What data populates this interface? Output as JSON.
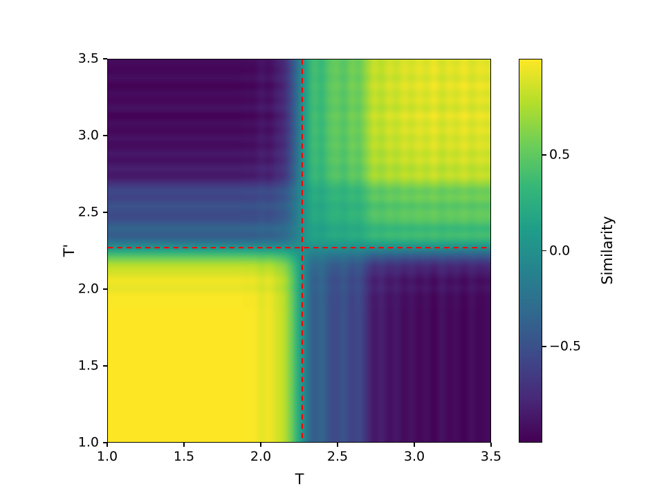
{
  "chart_data": {
    "type": "heatmap",
    "title": "",
    "xlabel": "T",
    "ylabel": "T'",
    "x_range": [
      1.0,
      3.5
    ],
    "y_range": [
      1.0,
      3.5
    ],
    "x_ticks": [
      "1.0",
      "1.5",
      "2.0",
      "2.5",
      "3.0",
      "3.5"
    ],
    "x_tick_values": [
      1.0,
      1.5,
      2.0,
      2.5,
      3.0,
      3.5
    ],
    "y_ticks": [
      "1.0",
      "1.5",
      "2.0",
      "2.5",
      "3.0",
      "3.5"
    ],
    "y_tick_values": [
      1.0,
      1.5,
      2.0,
      2.5,
      3.0,
      3.5
    ],
    "grid": false,
    "colormap": "viridis",
    "colormap_stops": [
      "#440154",
      "#482878",
      "#3e4989",
      "#31688e",
      "#26828e",
      "#1f9e89",
      "#35b779",
      "#6ece58",
      "#b5de2b",
      "#fde725"
    ],
    "colorbar": {
      "label": "Similarity",
      "ticks": [
        "0.5",
        "0.0",
        "−0.5"
      ],
      "tick_values": [
        0.5,
        0.0,
        -0.5
      ],
      "vmin": -1.0,
      "vmax": 1.0
    },
    "critical_line": {
      "T_c": 2.27,
      "color": "#ff0000",
      "style": "dashed",
      "orientation": "vertical-and-horizontal"
    },
    "T_values": [
      1.0,
      1.05,
      1.1,
      1.15,
      1.2,
      1.25,
      1.3,
      1.35,
      1.4,
      1.45,
      1.5,
      1.55,
      1.6,
      1.65,
      1.7,
      1.75,
      1.8,
      1.85,
      1.9,
      1.95,
      2.0,
      2.05,
      2.1,
      2.15,
      2.2,
      2.25,
      2.3,
      2.35,
      2.4,
      2.45,
      2.5,
      2.55,
      2.6,
      2.65,
      2.7,
      2.75,
      2.8,
      2.85,
      2.9,
      2.95,
      3.0,
      3.05,
      3.1,
      3.15,
      3.2,
      3.25,
      3.3,
      3.35,
      3.4,
      3.45,
      3.5
    ],
    "order_parameter_profile": [
      1.0,
      1.0,
      1.0,
      1.0,
      1.0,
      1.0,
      1.0,
      1.0,
      1.0,
      1.0,
      1.0,
      1.0,
      1.0,
      1.0,
      1.0,
      1.0,
      1.0,
      1.0,
      0.99,
      0.99,
      0.93,
      0.97,
      0.88,
      0.8,
      0.55,
      0.18,
      -0.18,
      -0.42,
      -0.35,
      -0.5,
      -0.55,
      -0.48,
      -0.6,
      -0.55,
      -0.72,
      -0.88,
      -0.82,
      -0.92,
      -0.87,
      -0.95,
      -0.9,
      -0.97,
      -0.92,
      -1.0,
      -0.9,
      -0.97,
      -0.93,
      -1.0,
      -0.92,
      -0.98,
      -0.95
    ],
    "matrix_rule": "similarity[i][j] = order_parameter_profile[i] * order_parameter_profile[j]"
  }
}
